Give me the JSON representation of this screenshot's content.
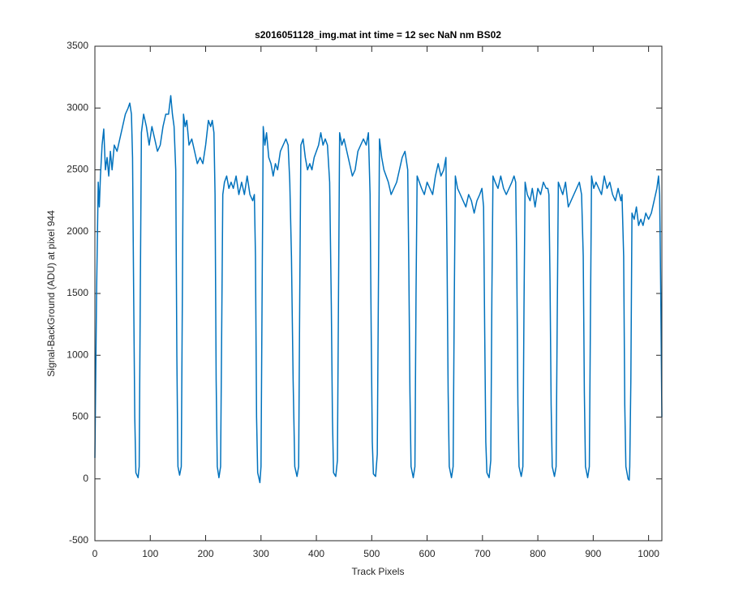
{
  "chart_data": {
    "type": "line",
    "title": "s2016051128_img.mat int time = 12 sec  NaN nm BS02",
    "xlabel": "Track Pixels",
    "ylabel": "Signal-BackGround (ADU) at pixel 944",
    "xlim": [
      0,
      1024
    ],
    "ylim": [
      -500,
      3500
    ],
    "xticks": [
      0,
      100,
      200,
      300,
      400,
      500,
      600,
      700,
      800,
      900,
      1000
    ],
    "yticks": [
      -500,
      0,
      500,
      1000,
      1500,
      2000,
      2500,
      3000,
      3500
    ],
    "grid": false,
    "series": [
      {
        "color": "#0072bd",
        "x": [
          0,
          3,
          6,
          8,
          10,
          13,
          16,
          19,
          22,
          25,
          28,
          31,
          35,
          40,
          45,
          50,
          55,
          60,
          63,
          66,
          68,
          70,
          72,
          74,
          78,
          80,
          82,
          84,
          88,
          93,
          98,
          103,
          108,
          113,
          118,
          123,
          128,
          133,
          137,
          140,
          143,
          146,
          148,
          150,
          153,
          156,
          158,
          160,
          163,
          166,
          170,
          175,
          180,
          185,
          190,
          195,
          200,
          205,
          209,
          212,
          215,
          217,
          219,
          221,
          224,
          227,
          229,
          231,
          234,
          238,
          242,
          246,
          250,
          255,
          260,
          265,
          270,
          275,
          280,
          285,
          288,
          290,
          292,
          294,
          298,
          300,
          302,
          304,
          307,
          310,
          314,
          318,
          322,
          326,
          330,
          335,
          340,
          345,
          349,
          352,
          355,
          358,
          361,
          365,
          368,
          370,
          372,
          376,
          380,
          384,
          388,
          392,
          396,
          400,
          404,
          408,
          412,
          416,
          420,
          424,
          427,
          429,
          431,
          435,
          438,
          440,
          442,
          446,
          450,
          455,
          460,
          465,
          470,
          475,
          480,
          485,
          490,
          494,
          497,
          499,
          501,
          503,
          507,
          510,
          512,
          514,
          518,
          522,
          526,
          530,
          535,
          540,
          545,
          550,
          555,
          560,
          565,
          567,
          569,
          571,
          575,
          578,
          580,
          582,
          586,
          590,
          595,
          600,
          605,
          610,
          615,
          620,
          625,
          630,
          634,
          636,
          638,
          640,
          644,
          647,
          649,
          651,
          655,
          660,
          665,
          670,
          675,
          680,
          685,
          690,
          695,
          699,
          702,
          704,
          706,
          708,
          712,
          715,
          717,
          719,
          723,
          728,
          733,
          738,
          743,
          748,
          753,
          757,
          760,
          762,
          764,
          766,
          770,
          773,
          775,
          777,
          781,
          786,
          790,
          795,
          800,
          805,
          810,
          815,
          818,
          820,
          822,
          824,
          826,
          830,
          833,
          835,
          837,
          841,
          845,
          850,
          855,
          860,
          865,
          870,
          875,
          879,
          882,
          884,
          886,
          890,
          893,
          895,
          897,
          901,
          905,
          910,
          915,
          920,
          925,
          930,
          935,
          940,
          945,
          950,
          952,
          955,
          957,
          959,
          963,
          965,
          966,
          968,
          970,
          974,
          978,
          982,
          986,
          990,
          995,
          1000,
          1005,
          1010,
          1015,
          1018,
          1020,
          1022,
          1024
        ],
        "values": [
          170,
          1500,
          2400,
          2200,
          2450,
          2700,
          2830,
          2500,
          2600,
          2450,
          2650,
          2500,
          2700,
          2650,
          2750,
          2850,
          2950,
          3000,
          3040,
          2950,
          2600,
          1500,
          500,
          50,
          10,
          100,
          1500,
          2800,
          2950,
          2850,
          2700,
          2850,
          2750,
          2650,
          2700,
          2850,
          2950,
          2950,
          3100,
          2950,
          2850,
          2500,
          1000,
          100,
          30,
          100,
          1500,
          2950,
          2850,
          2900,
          2700,
          2750,
          2650,
          2550,
          2600,
          2550,
          2700,
          2900,
          2850,
          2900,
          2800,
          2300,
          800,
          100,
          10,
          100,
          1200,
          2300,
          2400,
          2450,
          2350,
          2400,
          2350,
          2450,
          2300,
          2400,
          2300,
          2450,
          2300,
          2250,
          2300,
          1800,
          500,
          50,
          -30,
          100,
          1500,
          2850,
          2700,
          2800,
          2600,
          2550,
          2450,
          2550,
          2500,
          2650,
          2700,
          2750,
          2700,
          2400,
          1800,
          800,
          100,
          20,
          100,
          1500,
          2700,
          2750,
          2600,
          2500,
          2550,
          2500,
          2600,
          2650,
          2700,
          2800,
          2700,
          2750,
          2700,
          2400,
          1400,
          500,
          50,
          20,
          150,
          1500,
          2800,
          2700,
          2750,
          2650,
          2550,
          2450,
          2500,
          2650,
          2700,
          2750,
          2700,
          2800,
          2300,
          1200,
          300,
          40,
          20,
          200,
          1500,
          2750,
          2600,
          2500,
          2450,
          2400,
          2300,
          2350,
          2400,
          2500,
          2600,
          2650,
          2500,
          1700,
          700,
          100,
          10,
          100,
          1500,
          2450,
          2400,
          2350,
          2300,
          2400,
          2350,
          2300,
          2450,
          2550,
          2450,
          2500,
          2600,
          1800,
          700,
          100,
          10,
          100,
          1400,
          2450,
          2350,
          2300,
          2250,
          2200,
          2300,
          2250,
          2150,
          2250,
          2300,
          2350,
          2200,
          1200,
          300,
          50,
          10,
          150,
          1500,
          2450,
          2400,
          2350,
          2450,
          2350,
          2300,
          2350,
          2400,
          2450,
          2400,
          1700,
          600,
          100,
          20,
          100,
          1400,
          2400,
          2300,
          2250,
          2350,
          2200,
          2350,
          2300,
          2400,
          2350,
          2350,
          2300,
          1600,
          600,
          100,
          20,
          100,
          1300,
          2400,
          2350,
          2300,
          2400,
          2200,
          2250,
          2300,
          2350,
          2400,
          2300,
          1800,
          700,
          100,
          10,
          100,
          1300,
          2450,
          2350,
          2400,
          2350,
          2300,
          2450,
          2350,
          2400,
          2300,
          2250,
          2350,
          2250,
          2300,
          1800,
          600,
          100,
          0,
          -10,
          100,
          800,
          2150,
          2100,
          2200,
          2050,
          2100,
          2050,
          2150,
          2100,
          2150,
          2250,
          2350,
          2450,
          2300,
          1500,
          500
        ]
      }
    ]
  }
}
